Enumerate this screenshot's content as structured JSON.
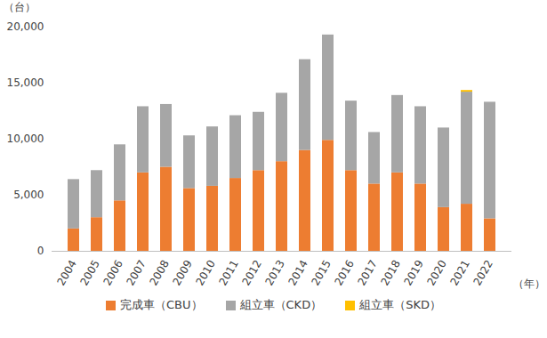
{
  "chart_data": {
    "type": "bar",
    "stacked": true,
    "grid": false,
    "legend": "bottom",
    "y_label": "（台）",
    "x_label": "（年）",
    "categories": [
      "2004",
      "2005",
      "2006",
      "2007",
      "2008",
      "2009",
      "2010",
      "2011",
      "2012",
      "2013",
      "2014",
      "2015",
      "2016",
      "2017",
      "2018",
      "2019",
      "2020",
      "2021",
      "2022"
    ],
    "series": [
      {
        "name": "完成車（CBU）",
        "color": "#ed7d31",
        "values": [
          2000,
          3000,
          4500,
          7000,
          7500,
          5600,
          5800,
          6500,
          7200,
          8000,
          9000,
          9900,
          7200,
          6000,
          7000,
          6000,
          3900,
          4200,
          2900
        ]
      },
      {
        "name": "組立車（CKD）",
        "color": "#a6a6a6",
        "values": [
          4400,
          4200,
          5000,
          5900,
          5600,
          4700,
          5300,
          5600,
          5200,
          6100,
          8100,
          9400,
          6200,
          4600,
          6900,
          6900,
          7100,
          10000,
          10400
        ]
      },
      {
        "name": "組立車（SKD）",
        "color": "#ffc000",
        "values": [
          0,
          0,
          0,
          0,
          0,
          0,
          0,
          0,
          0,
          0,
          0,
          0,
          0,
          0,
          0,
          0,
          0,
          150,
          0
        ]
      }
    ],
    "ylim": [
      0,
      20000
    ],
    "yticks": [
      0,
      {
        "value": 5000,
        "label": "5,000"
      },
      {
        "value": 10000,
        "label": "10,000"
      },
      {
        "value": 15000,
        "label": "15,000"
      },
      {
        "value": 20000,
        "label": "20,000"
      }
    ]
  }
}
